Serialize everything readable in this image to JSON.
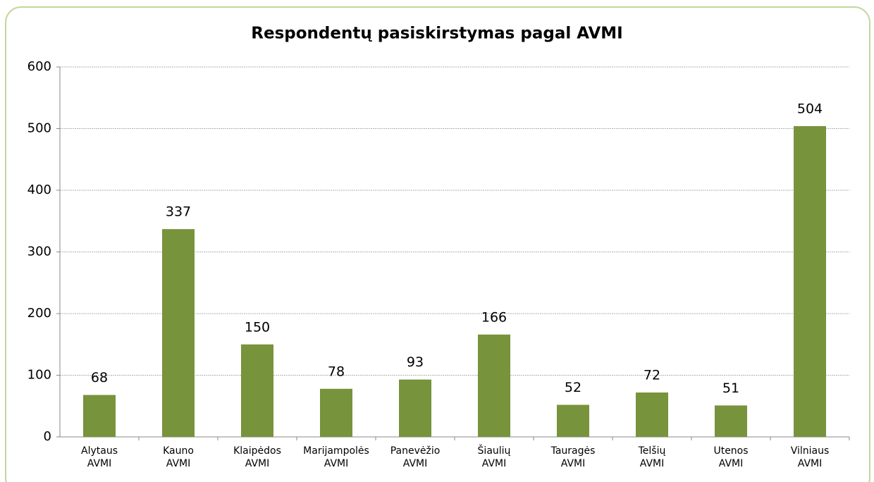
{
  "chart_data": {
    "type": "bar",
    "title": "Respondentų pasiskirstymas pagal AVMI",
    "categories": [
      "Alytaus AVMI",
      "Kauno AVMI",
      "Klaipėdos AVMI",
      "Marijampolės AVMI",
      "Panevėžio AVMI",
      "Šiaulių AVMI",
      "Tauragės AVMI",
      "Telšių AVMI",
      "Utenos AVMI",
      "Vilniaus AVMI"
    ],
    "values": [
      68,
      337,
      150,
      78,
      93,
      166,
      52,
      72,
      51,
      504
    ],
    "color": "#77933c",
    "ylim": [
      0,
      600
    ],
    "yticks": [
      0,
      100,
      200,
      300,
      400,
      500,
      600
    ],
    "grid": true
  }
}
